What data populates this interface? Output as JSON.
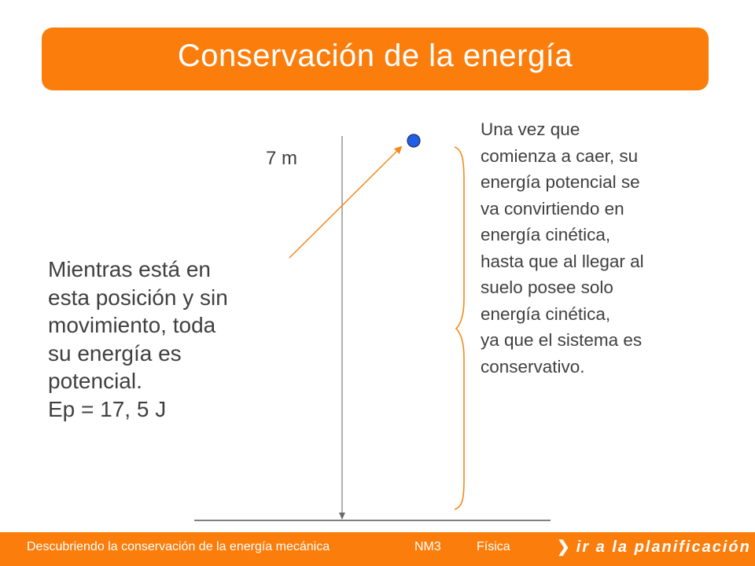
{
  "title": "Conservación de la energía",
  "diagram": {
    "height_label": "7 m"
  },
  "left_text": {
    "lines": [
      "Mientras está en",
      "esta posición y sin",
      "movimiento,  toda",
      "su energía es",
      "potencial.",
      "Ep = 17, 5 J"
    ]
  },
  "right_text": {
    "lines": [
      "Una vez que",
      "comienza a caer,  su",
      "energía potencial se",
      "va  convirtiendo en",
      "energía cinética,",
      "hasta que al llegar al",
      "suelo posee solo",
      "energía cinética,",
      "ya que el sistema es",
      "conservativo."
    ]
  },
  "footer": {
    "course": "Descubriendo la conservación de la energía mecánica",
    "level": "NM3",
    "subject": "Física",
    "link_label": "ir a la planificación"
  },
  "colors": {
    "accent": "#fb7e0d",
    "ball": "#1f5fe8",
    "arrow": "#f28a1e",
    "text": "#404040"
  }
}
